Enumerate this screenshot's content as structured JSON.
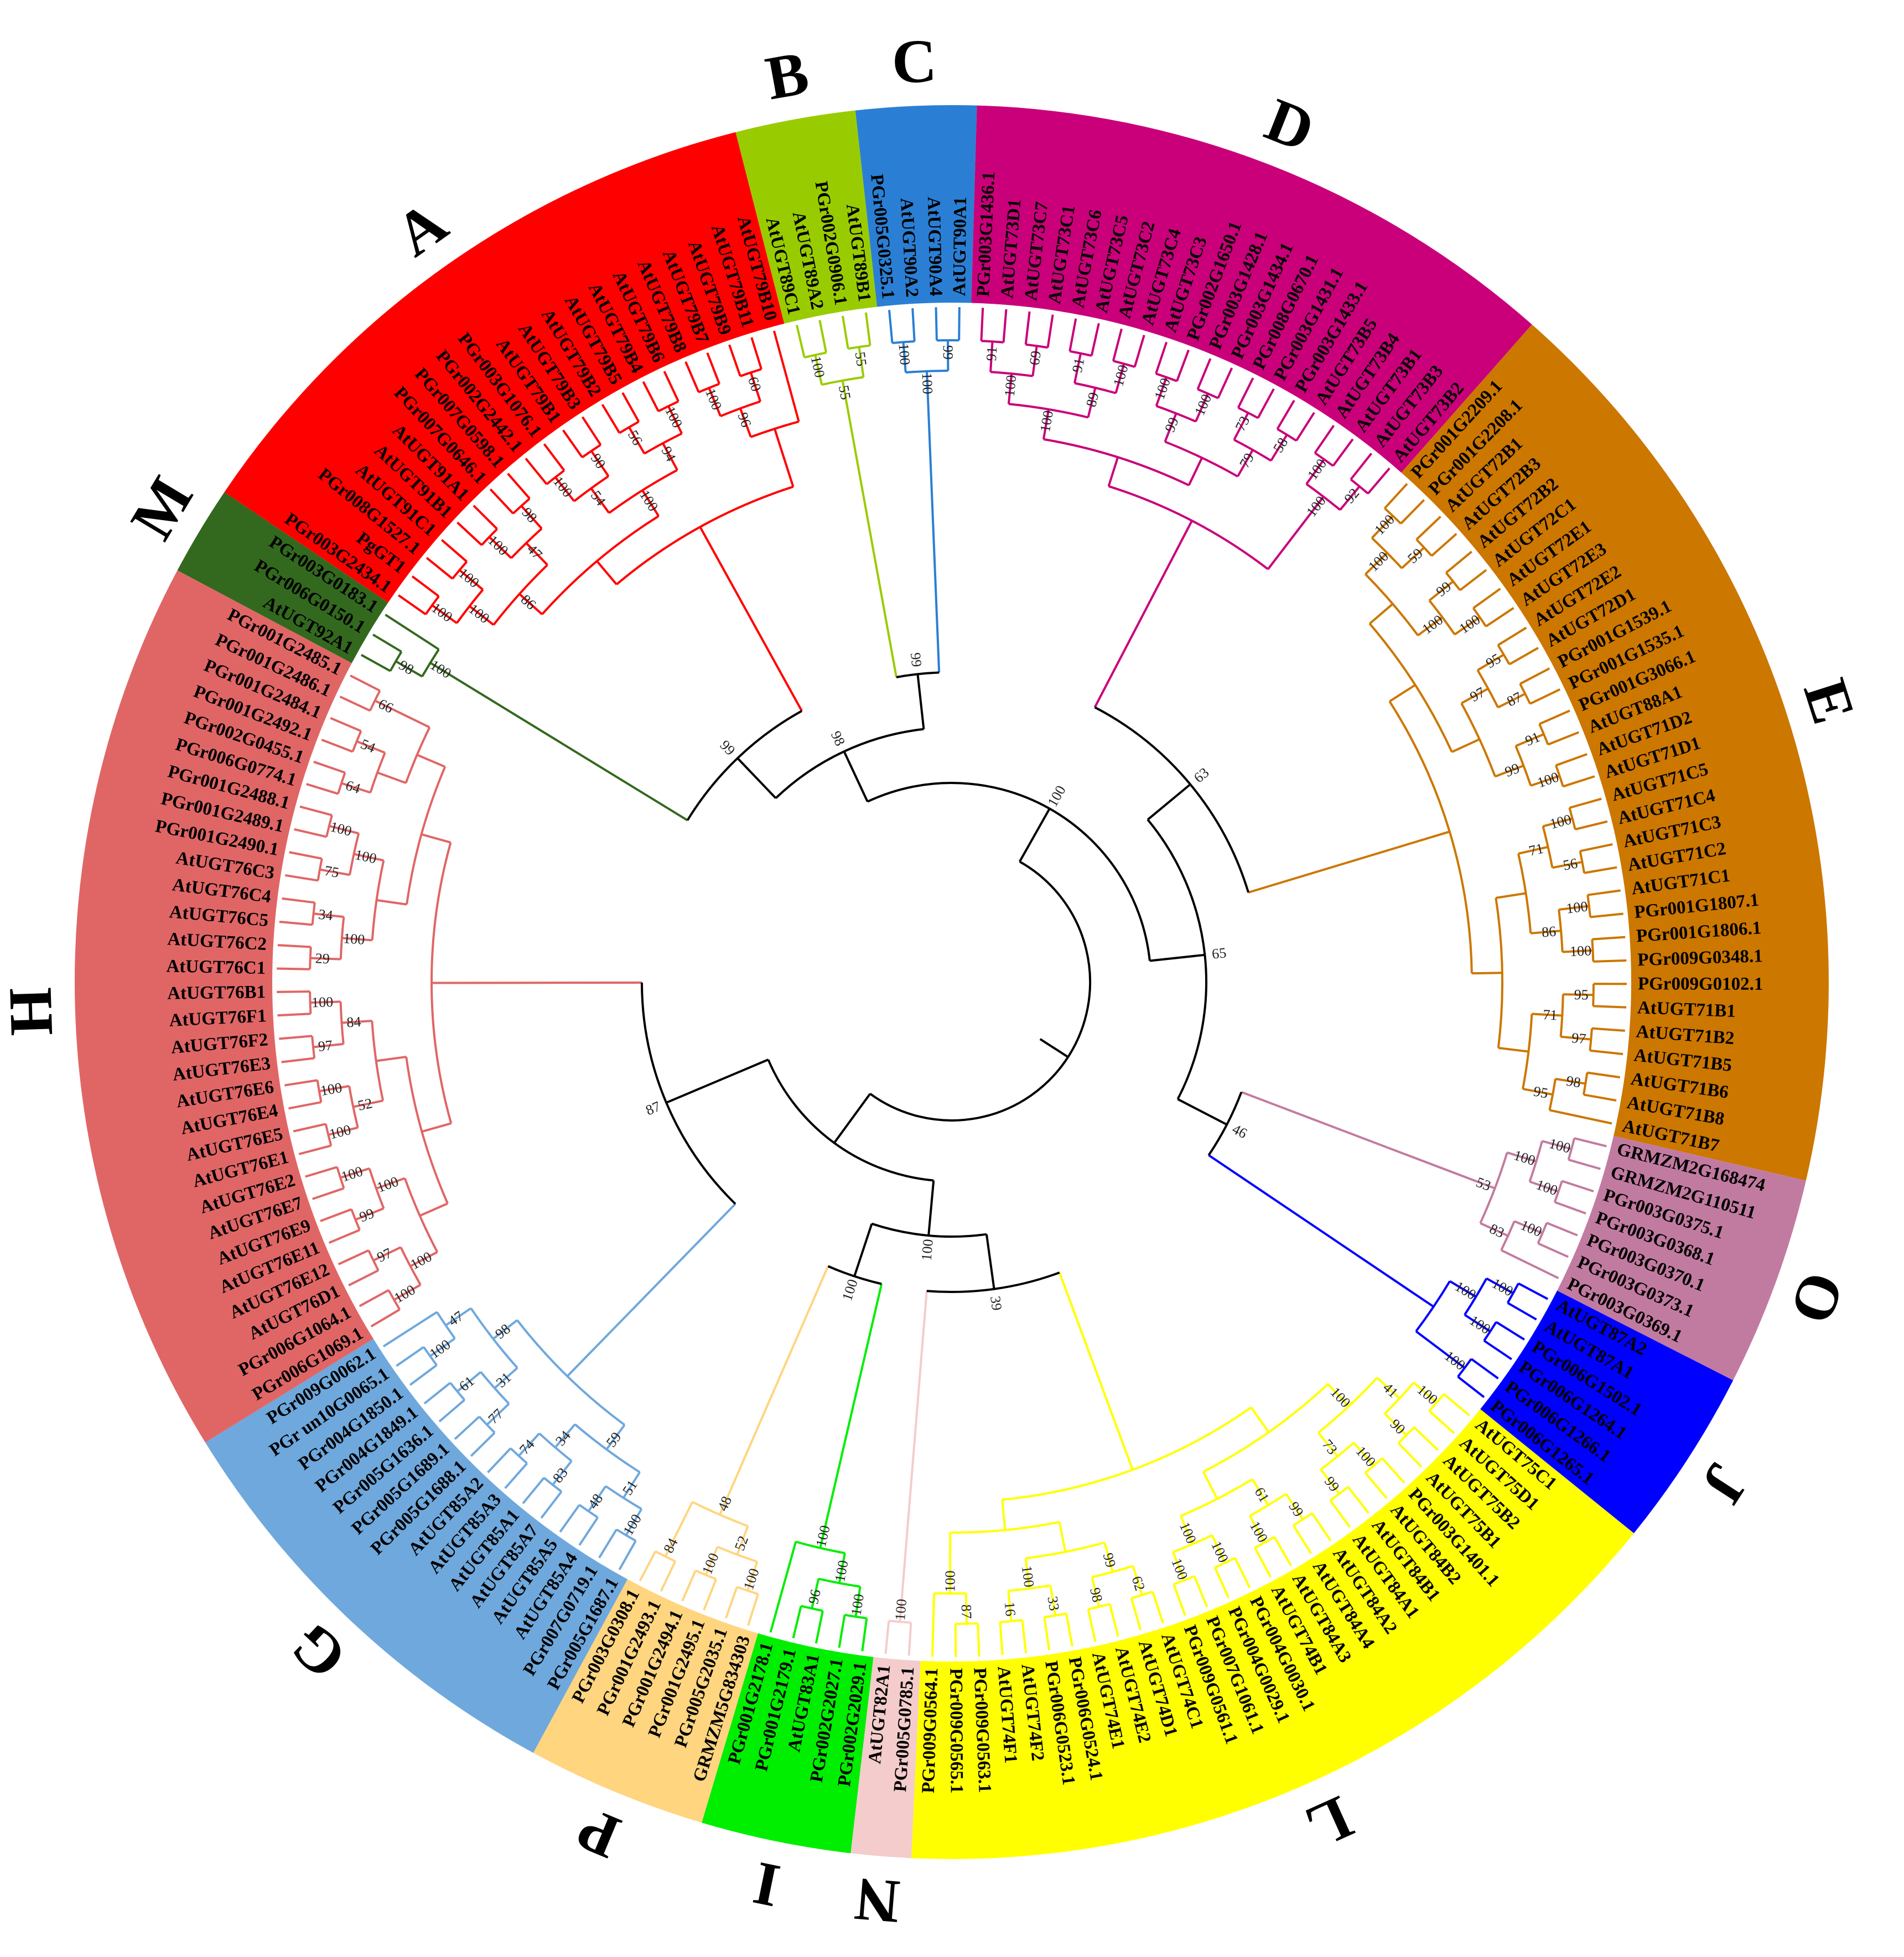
{
  "groups": [
    {
      "id": "M",
      "color": "#33691e",
      "textColor": "#000000",
      "leaves": [
        "AtUGT92A1",
        "PGr006G0150.1",
        "PGr003G0183.1"
      ]
    },
    {
      "id": "A",
      "color": "#ff0000",
      "textColor": "#000000",
      "leaves": [
        "PGr003G2434.1",
        "PgGT1",
        "PGr008G1527.1",
        "AtUGT91C1",
        "AtUGT91B1",
        "AtUGT91A1",
        "PGr007G0646.1",
        "PGr007G0598.1",
        "PGr002G2442.1",
        "PGr003G1076.1",
        "AtUGT79B1",
        "AtUGT79B3",
        "AtUGT79B2",
        "AtUGT79B5",
        "AtUGT79B4",
        "AtUGT79B6",
        "AtUGT79B8",
        "AtUGT79B7",
        "AtUGT79B9",
        "AtUGT79B11",
        "AtUGT79B10"
      ]
    },
    {
      "id": "B",
      "color": "#99cc00",
      "textColor": "#000000",
      "leaves": [
        "AtUGT89C1",
        "AtUGT89A2",
        "PGr002G0906.1",
        "AtUGT89B1"
      ]
    },
    {
      "id": "C",
      "color": "#2a7fd4",
      "textColor": "#000000",
      "leaves": [
        "PGr005G0325.1",
        "AtUGT90A2",
        "AtUGT90A4",
        "AtUGT90A1"
      ]
    },
    {
      "id": "D",
      "color": "#c9007a",
      "textColor": "#000000",
      "leaves": [
        "PGr003G1436.1",
        "AtUGT73D1",
        "AtUGT73C7",
        "AtUGT73C1",
        "AtUGT73C6",
        "AtUGT73C5",
        "AtUGT73C2",
        "AtUGT73C4",
        "AtUGT73C3",
        "PGr002G1650.1",
        "PGr003G1428.1",
        "PGr003G1434.1",
        "PGr008G0670.1",
        "PGr003G1431.1",
        "PGr003G1433.1",
        "AtUGT73B5",
        "AtUGT73B4",
        "AtUGT73B1",
        "AtUGT73B3",
        "AtUGT73B2"
      ]
    },
    {
      "id": "E",
      "color": "#cc7700",
      "textColor": "#000000",
      "leaves": [
        "PGr001G2209.1",
        "PGr001G2208.1",
        "AtUGT72B1",
        "AtUGT72B3",
        "AtUGT72B2",
        "AtUGT72C1",
        "AtUGT72E1",
        "AtUGT72E3",
        "AtUGT72E2",
        "AtUGT72D1",
        "PGr001G1539.1",
        "PGr001G1535.1",
        "PGr001G3066.1",
        "AtUGT88A1",
        "AtUGT71D2",
        "AtUGT71D1",
        "AtUGT71C5",
        "AtUGT71C4",
        "AtUGT71C3",
        "AtUGT71C2",
        "AtUGT71C1",
        "PGr001G1807.1",
        "PGr001G1806.1",
        "PGr009G0348.1",
        "PGr009G0102.1",
        "AtUGT71B1",
        "AtUGT71B2",
        "AtUGT71B5",
        "AtUGT71B6",
        "AtUGT71B8",
        "AtUGT71B7"
      ]
    },
    {
      "id": "O",
      "color": "#c27ba0",
      "textColor": "#000000",
      "leaves": [
        "GRMZM2G168474",
        "GRMZM2G110511",
        "PGr003G0375.1",
        "PGr003G0368.1",
        "PGr003G0370.1",
        "PGr003G0373.1",
        "PGr003G0369.1"
      ]
    },
    {
      "id": "J",
      "color": "#0000ff",
      "textColor": "#000000",
      "leaves": [
        "AtUGT87A2",
        "AtUGT87A1",
        "PGr006G1502.1",
        "PGr006G1264.1",
        "PGr006G1266.1",
        "PGr006G1265.1"
      ]
    },
    {
      "id": "L",
      "color": "#ffff00",
      "textColor": "#000000",
      "leaves": [
        "AtUGT75C1",
        "AtUGT75D1",
        "AtUGT75B2",
        "AtUGT75B1",
        "PGr003G1401.1",
        "AtUGT84B2",
        "AtUGT84B1",
        "AtUGT84A1",
        "AtUGT84A2",
        "AtUGT84A4",
        "AtUGT84A3",
        "AtUGT74B1",
        "PGr004G0030.1",
        "PGr004G0029.1",
        "PGr007G1061.1",
        "PGr009G0561.1",
        "AtUGT74C1",
        "AtUGT74D1",
        "AtUGT74E2",
        "AtUGT74E1",
        "PGr006G0524.1",
        "PGr006G0523.1",
        "AtUGT74F2",
        "AtUGT74F1",
        "PGr009G0563.1",
        "PGr009G0565.1",
        "PGr009G0564.1"
      ]
    },
    {
      "id": "N",
      "color": "#f4cccc",
      "textColor": "#000000",
      "leaves": [
        "PGr005G0785.1",
        "AtUGT82A1"
      ]
    },
    {
      "id": "I",
      "color": "#00ee00",
      "textColor": "#000000",
      "leaves": [
        "PGr002G2029.1",
        "PGr002G2027.1",
        "AtUGT83A1",
        "PGr001G2179.1",
        "PGr001G2178.1"
      ]
    },
    {
      "id": "P",
      "color": "#ffd580",
      "textColor": "#000000",
      "leaves": [
        "GRMZM5G834303",
        "PGr005G2035.1",
        "PGr001G2495.1",
        "PGr001G2494.1",
        "PGr001G2493.1",
        "PGr003G0308.1"
      ]
    },
    {
      "id": "G",
      "color": "#6fa8dc",
      "textColor": "#000000",
      "leaves": [
        "PGr005G1687.1",
        "PGr007G0719.1",
        "AtUGT85A4",
        "AtUGT85A5",
        "AtUGT85A7",
        "AtUGT85A1",
        "AtUGT85A3",
        "AtUGT85A2",
        "PGr005G1688.1",
        "PGr005G1689.1",
        "PGr005G1636.1",
        "PGr004G1849.1",
        "PGr004G1850.1",
        "PGr un10G0065.1",
        "PGr009G0062.1"
      ]
    },
    {
      "id": "H",
      "color": "#e06666",
      "textColor": "#000000",
      "leaves": [
        "PGr006G1069.1",
        "PGr006G1064.1",
        "AtUGT76D1",
        "AtUGT76E12",
        "AtUGT76E11",
        "AtUGT76E9",
        "AtUGT76E7",
        "AtUGT76E2",
        "AtUGT76E1",
        "AtUGT76E5",
        "AtUGT76E4",
        "AtUGT76E6",
        "AtUGT76E3",
        "AtUGT76F2",
        "AtUGT76F1",
        "AtUGT76B1",
        "AtUGT76C1",
        "AtUGT76C2",
        "AtUGT76C5",
        "AtUGT76C4",
        "AtUGT76C3",
        "PGr001G2490.1",
        "PGr001G2489.1",
        "PGr001G2488.1",
        "PGr006G0774.1",
        "PGr002G0455.1",
        "PGr001G2492.1",
        "PGr001G2484.1",
        "PGr001G2486.1",
        "PGr001G2485.1"
      ]
    }
  ],
  "bootstrap": {
    "backbone": [
      "99",
      "99",
      "63",
      "46",
      "39",
      "100",
      "87",
      "98",
      "65",
      "100",
      "100"
    ],
    "M": [
      "98",
      "100"
    ],
    "A": [
      "100",
      "100",
      "100",
      "98",
      "100",
      "90",
      "56",
      "100",
      "100",
      "60",
      "100",
      "47",
      "54",
      "94",
      "96",
      "86",
      "100"
    ],
    "B": [
      "100",
      "55",
      "55"
    ],
    "C": [
      "100",
      "99",
      "100"
    ],
    "D": [
      "91",
      "69",
      "91",
      "100",
      "100",
      "100",
      "73",
      "58",
      "100",
      "92",
      "100",
      "89",
      "99",
      "79",
      "100",
      "100"
    ],
    "E": [
      "100",
      "59",
      "99",
      "100",
      "95",
      "87",
      "91",
      "100",
      "100",
      "56",
      "100",
      "100",
      "95",
      "97",
      "98",
      "100",
      "100",
      "97",
      "99",
      "71",
      "86",
      "71",
      "95"
    ],
    "O": [
      "100",
      "100",
      "100",
      "100",
      "83",
      "53"
    ],
    "J": [
      "100",
      "100",
      "100",
      "100"
    ],
    "L": [
      "100",
      "90",
      "100",
      "99",
      "99",
      "100",
      "100",
      "100",
      "62",
      "98",
      "33",
      "16",
      "87",
      "41",
      "73",
      "61",
      "100",
      "99",
      "100",
      "100",
      "100"
    ],
    "N": [
      "100"
    ],
    "I": [
      "100",
      "96",
      "100",
      "100"
    ],
    "P": [
      "100",
      "100",
      "84",
      "52",
      "48"
    ],
    "G": [
      "100",
      "48",
      "83",
      "74",
      "77",
      "61",
      "100",
      "51",
      "34",
      "31",
      "47",
      "59",
      "98"
    ],
    "H": [
      "100",
      "97",
      "99",
      "100",
      "100",
      "100",
      "97",
      "100",
      "29",
      "34",
      "75",
      "100",
      "64",
      "54",
      "66",
      "100",
      "100",
      "52",
      "84",
      "100",
      "100"
    ]
  }
}
